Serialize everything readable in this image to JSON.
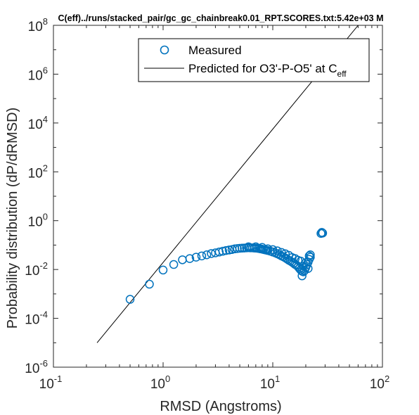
{
  "chart_data": {
    "type": "scatter",
    "title": "C(eff)../runs/stacked_pair/gc_gc_chainbreak0.01_RPT.SCORES.txt:5.42e+03 M",
    "xlabel": "RMSD (Angstroms)",
    "ylabel": "Probability distribution (dP/dRMSD)",
    "xscale": "log",
    "yscale": "log",
    "xlim": [
      0.1,
      100
    ],
    "ylim": [
      1e-06,
      100000000.0
    ],
    "grid": false,
    "legend_position": "top-right",
    "xticks": [
      {
        "base": "10",
        "exp": "-1",
        "value": 0.1
      },
      {
        "base": "10",
        "exp": "0",
        "value": 1
      },
      {
        "base": "10",
        "exp": "1",
        "value": 10
      },
      {
        "base": "10",
        "exp": "2",
        "value": 100
      }
    ],
    "yticks": [
      {
        "base": "10",
        "exp": "-6",
        "value": 1e-06
      },
      {
        "base": "10",
        "exp": "-4",
        "value": 0.0001
      },
      {
        "base": "10",
        "exp": "-2",
        "value": 0.01
      },
      {
        "base": "10",
        "exp": "0",
        "value": 1
      },
      {
        "base": "10",
        "exp": "2",
        "value": 100
      },
      {
        "base": "10",
        "exp": "4",
        "value": 10000.0
      },
      {
        "base": "10",
        "exp": "6",
        "value": 1000000.0
      },
      {
        "base": "10",
        "exp": "8",
        "value": 100000000.0
      }
    ],
    "series": [
      {
        "name": "Measured",
        "marker": "circle-open",
        "color": "#0072BD",
        "points": [
          [
            0.5,
            0.0006
          ],
          [
            0.75,
            0.0025
          ],
          [
            1.0,
            0.0095
          ],
          [
            1.25,
            0.016
          ],
          [
            1.5,
            0.025
          ],
          [
            1.75,
            0.028
          ],
          [
            2.0,
            0.032
          ],
          [
            2.25,
            0.036
          ],
          [
            2.5,
            0.04
          ],
          [
            2.75,
            0.045
          ],
          [
            3.0,
            0.048
          ],
          [
            3.25,
            0.052
          ],
          [
            3.5,
            0.056
          ],
          [
            3.75,
            0.06
          ],
          [
            4.0,
            0.063
          ],
          [
            4.25,
            0.066
          ],
          [
            4.5,
            0.07
          ],
          [
            4.75,
            0.072
          ],
          [
            5.0,
            0.074
          ],
          [
            5.25,
            0.075
          ],
          [
            5.5,
            0.076
          ],
          [
            5.75,
            0.077
          ],
          [
            6.0,
            0.078
          ],
          [
            6.25,
            0.077
          ],
          [
            6.5,
            0.077
          ],
          [
            6.75,
            0.076
          ],
          [
            7.0,
            0.075
          ],
          [
            7.25,
            0.074
          ],
          [
            7.5,
            0.072
          ],
          [
            7.75,
            0.07
          ],
          [
            8.0,
            0.068
          ],
          [
            8.25,
            0.066
          ],
          [
            8.5,
            0.064
          ],
          [
            8.75,
            0.062
          ],
          [
            9.0,
            0.06
          ],
          [
            9.5,
            0.056
          ],
          [
            10.0,
            0.052
          ],
          [
            10.5,
            0.048
          ],
          [
            11.0,
            0.044
          ],
          [
            11.5,
            0.04
          ],
          [
            12.0,
            0.036
          ],
          [
            12.5,
            0.033
          ],
          [
            13.0,
            0.03
          ],
          [
            13.5,
            0.027
          ],
          [
            14.0,
            0.024
          ],
          [
            14.5,
            0.022
          ],
          [
            15.0,
            0.02
          ],
          [
            15.5,
            0.018
          ],
          [
            16.0,
            0.016
          ],
          [
            16.5,
            0.015
          ],
          [
            17.0,
            0.013
          ],
          [
            17.5,
            0.011
          ],
          [
            18.0,
            0.0095
          ],
          [
            18.5,
            0.0085
          ],
          [
            19.0,
            0.008
          ],
          [
            19.5,
            0.009
          ],
          [
            20.0,
            0.012
          ],
          [
            20.5,
            0.016
          ],
          [
            21.0,
            0.02
          ],
          [
            21.5,
            0.026
          ],
          [
            22.0,
            0.032
          ],
          [
            16.0,
            0.028
          ],
          [
            17.0,
            0.024
          ],
          [
            18.0,
            0.022
          ],
          [
            18.5,
            0.0055
          ],
          [
            19.0,
            0.014
          ],
          [
            20.0,
            0.019
          ],
          [
            21.0,
            0.011
          ],
          [
            21.5,
            0.036
          ],
          [
            22.0,
            0.04
          ],
          [
            9.0,
            0.07
          ],
          [
            10.0,
            0.065
          ],
          [
            11.0,
            0.058
          ],
          [
            12.0,
            0.05
          ],
          [
            13.0,
            0.044
          ],
          [
            14.0,
            0.038
          ],
          [
            15.0,
            0.031
          ],
          [
            7.0,
            0.085
          ],
          [
            8.0,
            0.08
          ],
          [
            6.0,
            0.085
          ],
          [
            27.5,
            0.3
          ],
          [
            28.0,
            0.33
          ],
          [
            28.5,
            0.31
          ]
        ]
      },
      {
        "name": "Predicted for O3'-P-O5' at C_eff",
        "marker": "line",
        "color": "#000000",
        "points": [
          [
            0.25,
            1e-05
          ],
          [
            60,
            100000000
          ]
        ]
      }
    ],
    "legend": [
      {
        "label": "Measured"
      },
      {
        "label_main": "Predicted for O3'-P-O5' at C",
        "label_sub": "eff"
      }
    ]
  }
}
